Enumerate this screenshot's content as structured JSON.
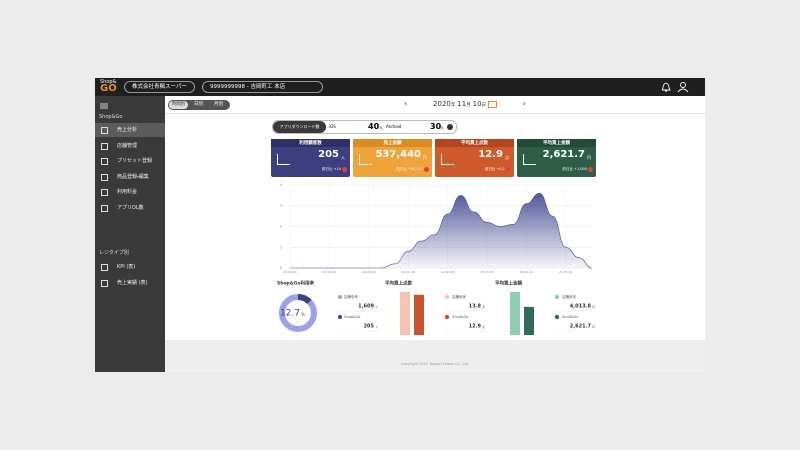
{
  "header": {
    "logo_top": "Shop&",
    "logo": "GO",
    "company": "株式会社青楓スーパー",
    "store": "9999999998 - 吉岡町工 本店"
  },
  "sidebar": {
    "section1": "Shop&Go",
    "items": [
      "売上分析",
      "店舗管理",
      "プリセット登録",
      "商品登録・編集",
      "利用料金",
      "アプリDL数"
    ],
    "section2": "レジタイプ別",
    "items2": [
      "KPI (表)",
      "売上実績 (表)"
    ]
  },
  "tabs": [
    "時間別",
    "日別",
    "月別"
  ],
  "date": {
    "year": "2020",
    "y": "年",
    "month": "11",
    "m": "月",
    "day": "10",
    "d": "日"
  },
  "downloads": {
    "label": "アプリダウンロード数",
    "ios_label": "iOS",
    "ios": "40",
    "ios_unit": "人",
    "android_label": "Android",
    "android": "30",
    "android_unit": "人"
  },
  "cards": [
    {
      "title": "利用顧客数",
      "value": "205",
      "unit": "人",
      "compare": "前日比 +10"
    },
    {
      "title": "売上金額",
      "value": "537,440",
      "unit": "円",
      "compare": "前日比 +40,117"
    },
    {
      "title": "平均買上点数",
      "value": "12.9",
      "unit": "点",
      "compare": "前日比 +0.1"
    },
    {
      "title": "平均買上金額",
      "value": "2,621.7",
      "unit": "円",
      "compare": "前日比 +1,000"
    }
  ],
  "chart": {
    "type": "area",
    "color": "#4a4f96",
    "x": [
      0,
      1,
      2,
      3,
      4,
      5,
      6,
      7,
      8,
      9,
      10,
      11,
      12,
      13,
      14,
      15,
      16,
      17,
      18,
      19,
      20,
      21,
      22,
      23
    ],
    "values": [
      0,
      0,
      0,
      0,
      0,
      0,
      0,
      0,
      0.2,
      0.8,
      1.3,
      1.6,
      2.6,
      3.5,
      2.7,
      2.2,
      2.0,
      2.1,
      3.1,
      3.6,
      2.5,
      1.0,
      0.5,
      0
    ],
    "xlim": [
      0,
      23
    ],
    "xticks": [
      {
        "value": 0,
        "label": "00:00:00"
      },
      {
        "value": 3,
        "label": "03:00:00"
      },
      {
        "value": 6,
        "label": "06:00:00"
      },
      {
        "value": 9,
        "label": "09:00:00"
      },
      {
        "value": 12,
        "label": "12:00:00"
      },
      {
        "value": 15,
        "label": "15:00:00"
      },
      {
        "value": 18,
        "label": "18:00:00"
      },
      {
        "value": 21,
        "label": "21:00:00"
      }
    ],
    "ylim": [
      0,
      4
    ],
    "yticks": [
      0,
      1,
      2,
      3,
      4
    ],
    "grid": true
  },
  "usage": {
    "title": "Shop&Go利用率",
    "value": 12.7,
    "unit": "%",
    "legend": [
      {
        "name": "店舗全体",
        "value": 1609,
        "value_label": "1,609",
        "unit": "人",
        "color": "#9aa2e8"
      },
      {
        "name": "Shop&Go",
        "value": 205,
        "value_label": "205",
        "unit": "人",
        "color": "#3d4282"
      }
    ]
  },
  "panels": [
    {
      "title": "平均買上点数",
      "names": [
        "店舗全体",
        "Shop&Go"
      ],
      "values": [
        13.8,
        12.9
      ],
      "units": [
        "点",
        "点"
      ],
      "colors": [
        "#f5c3b0",
        "#c9532e"
      ]
    },
    {
      "title": "平均買上金額",
      "names": [
        "店舗全体",
        "Shop&Go"
      ],
      "values": [
        4013.8,
        2621.7
      ],
      "value_labels": [
        "4,013.8",
        "2,621.7"
      ],
      "units": [
        "円",
        "円"
      ],
      "colors": [
        "#8fcfb1",
        "#2f6b55"
      ]
    }
  ],
  "footer": "Copyright 2020 Toppan Forms Co., Ltd."
}
